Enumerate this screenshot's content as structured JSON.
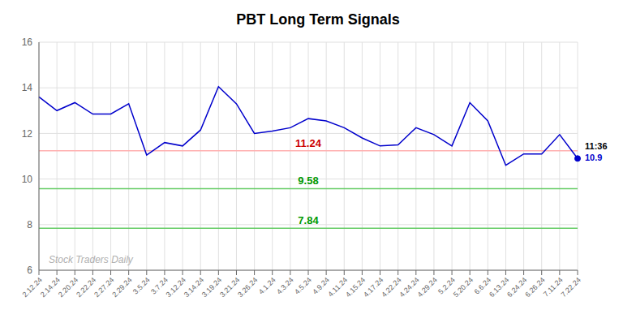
{
  "chart_data": {
    "type": "line",
    "title": "PBT Long Term Signals",
    "categories": [
      "2.12.24",
      "2.14.24",
      "2.20.24",
      "2.22.24",
      "2.27.24",
      "2.29.24",
      "3.5.24",
      "3.7.24",
      "3.12.24",
      "3.14.24",
      "3.19.24",
      "3.21.24",
      "3.26.24",
      "4.1.24",
      "4.3.24",
      "4.5.24",
      "4.9.24",
      "4.11.24",
      "4.15.24",
      "4.17.24",
      "4.22.24",
      "4.24.24",
      "4.29.24",
      "5.2.24",
      "5.20.24",
      "6.6.24",
      "6.13.24",
      "6.24.24",
      "6.26.24",
      "7.11.24",
      "7.22.24"
    ],
    "values": [
      13.6,
      13.0,
      13.35,
      12.85,
      12.85,
      13.3,
      11.05,
      11.6,
      11.45,
      12.15,
      14.05,
      13.3,
      12.0,
      12.1,
      12.25,
      12.65,
      12.55,
      12.25,
      11.8,
      11.45,
      11.5,
      12.25,
      11.95,
      11.45,
      13.35,
      12.55,
      10.6,
      11.1,
      11.1,
      11.95,
      10.9
    ],
    "color": "#0000cc",
    "ylim": [
      6,
      16
    ],
    "yticks": [
      6,
      8,
      10,
      12,
      14,
      16
    ],
    "grid": true,
    "reference_lines": [
      {
        "value": 11.24,
        "label": "11.24",
        "color": "#ffb0b0",
        "label_color": "#cc0000"
      },
      {
        "value": 9.58,
        "label": "9.58",
        "color": "#66cc66",
        "label_color": "#009900"
      },
      {
        "value": 7.84,
        "label": "7.84",
        "color": "#66cc66",
        "label_color": "#009900"
      }
    ],
    "last_point": {
      "marker": "circle",
      "time_label": "11:36",
      "value_label": "10.9"
    },
    "watermark": "Stock Traders Daily"
  }
}
